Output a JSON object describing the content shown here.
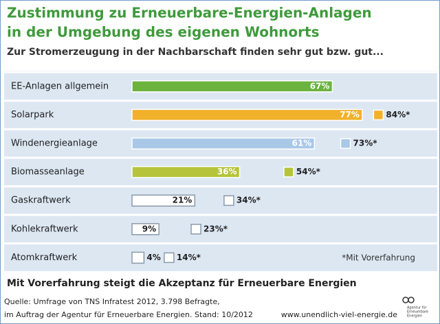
{
  "chart_data": {
    "type": "bar",
    "title": [
      "Zustimmung zu Erneuerbare-Energien-Anlagen",
      "in der Umgebung des eigenen Wohnorts"
    ],
    "subtitle": "Zur Stromerzeugung in der Nachbarschaft finden sehr gut bzw. gut...",
    "categories": [
      "EE-Anlagen allgemein",
      "Solarpark",
      "Windenergieanlage",
      "Biomasseanlage",
      "Gaskraftwerk",
      "Kohlekraftwerk",
      "Atomkraftwerk"
    ],
    "colors": [
      "#6bb33e",
      "#f2b12a",
      "#a9c8e8",
      "#b5c43a",
      "#ffffff",
      "#ffffff",
      "#ffffff"
    ],
    "series": [
      {
        "values": [
          67,
          77,
          61,
          36,
          21,
          9,
          4
        ],
        "value_labels": [
          "67%",
          "77%",
          "61%",
          "36%",
          "21%",
          "9%",
          "4%"
        ]
      },
      {
        "name": "*Mit Vorerfahrung",
        "values": [
          null,
          84,
          73,
          54,
          34,
          23,
          14
        ],
        "value_labels": [
          null,
          "84%*",
          "73%*",
          "54%*",
          "34%*",
          "23%*",
          "14%*"
        ]
      }
    ],
    "headline": "Mit Vorerfahrung steigt die Akzeptanz für Erneuerbare Energien",
    "source": [
      "Quelle: Umfrage von TNS Infratest 2012, 3.798 Befragte,",
      "im Auftrag der Agentur für Erneuerbare Energien. Stand: 10/2012"
    ],
    "url": "www.unendlich-viel-energie.de",
    "logo": [
      "Agentur für",
      "Erneuerbare",
      "Energien"
    ]
  }
}
